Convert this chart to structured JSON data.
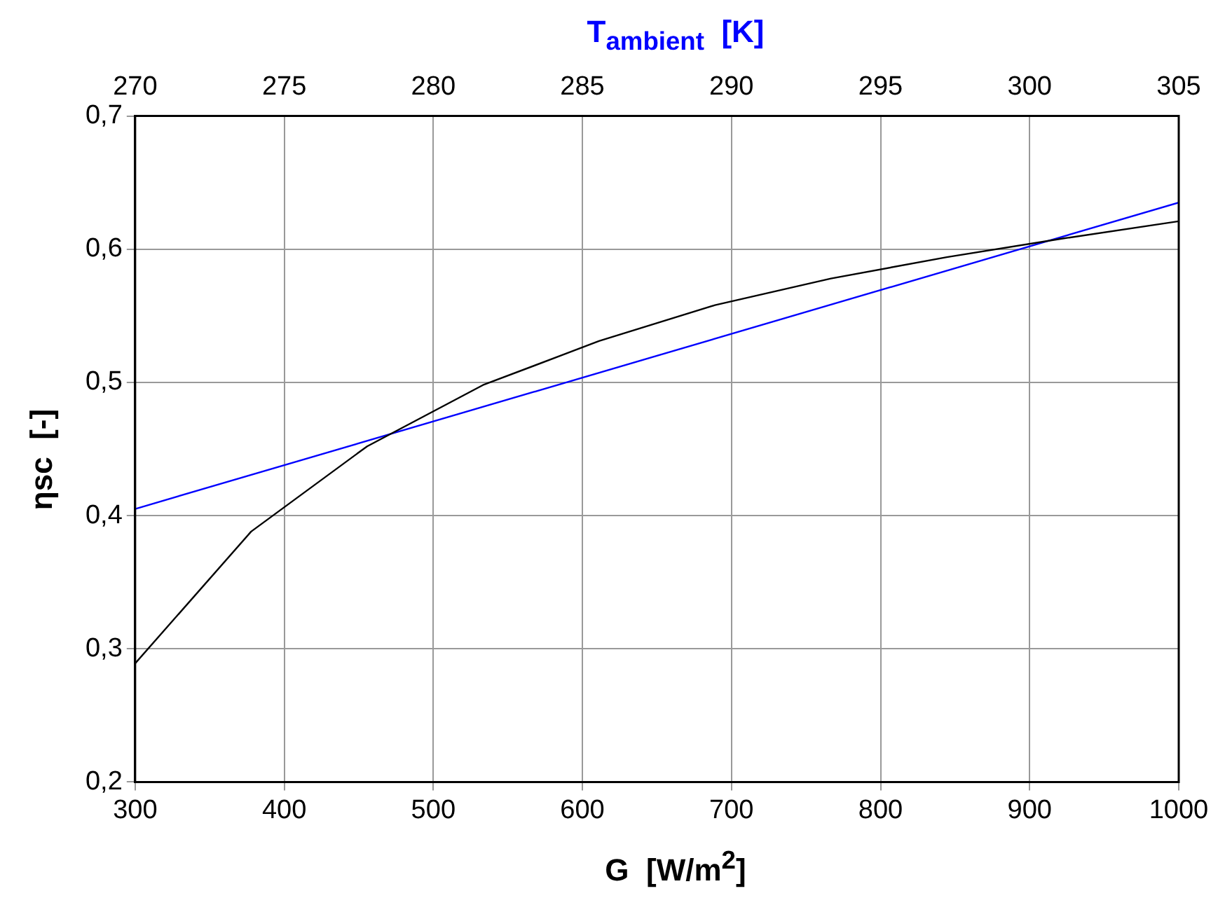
{
  "chart_data": {
    "type": "line",
    "xlabel": "G  [W/m$^{2}$]",
    "ylabel": "ηsc  [-]",
    "x2label": "T$_{ambient}$  [K]",
    "x": [
      300,
      377.8,
      455.6,
      533.3,
      611.1,
      688.9,
      766.7,
      844.4,
      922.2,
      1000
    ],
    "series": [
      {
        "color": "#000000",
        "values": [
          0.289,
          0.388,
          0.452,
          0.498,
          0.531,
          0.558,
          0.578,
          0.594,
          0.608,
          0.621
        ]
      },
      {
        "color": "#0000ff",
        "axis": "x2",
        "x": [
          270,
          305
        ],
        "values": [
          0.405,
          0.635
        ]
      }
    ],
    "xlim": [
      300,
      1000
    ],
    "xticks": [
      300,
      400,
      500,
      600,
      700,
      800,
      900,
      1000
    ],
    "x2lim": [
      270,
      305
    ],
    "x2ticks": [
      270,
      275,
      280,
      285,
      290,
      295,
      300,
      305
    ],
    "ylim": [
      0.2,
      0.7
    ],
    "yticks": [
      {
        "value": 0.2,
        "label": "0,2"
      },
      {
        "value": 0.3,
        "label": "0,3"
      },
      {
        "value": 0.4,
        "label": "0,4"
      },
      {
        "value": 0.5,
        "label": "0,5"
      },
      {
        "value": 0.6,
        "label": "0,6"
      },
      {
        "value": 0.7,
        "label": "0,7"
      }
    ],
    "grid": true,
    "legend": false,
    "marker": "none",
    "line_style": "solid"
  }
}
